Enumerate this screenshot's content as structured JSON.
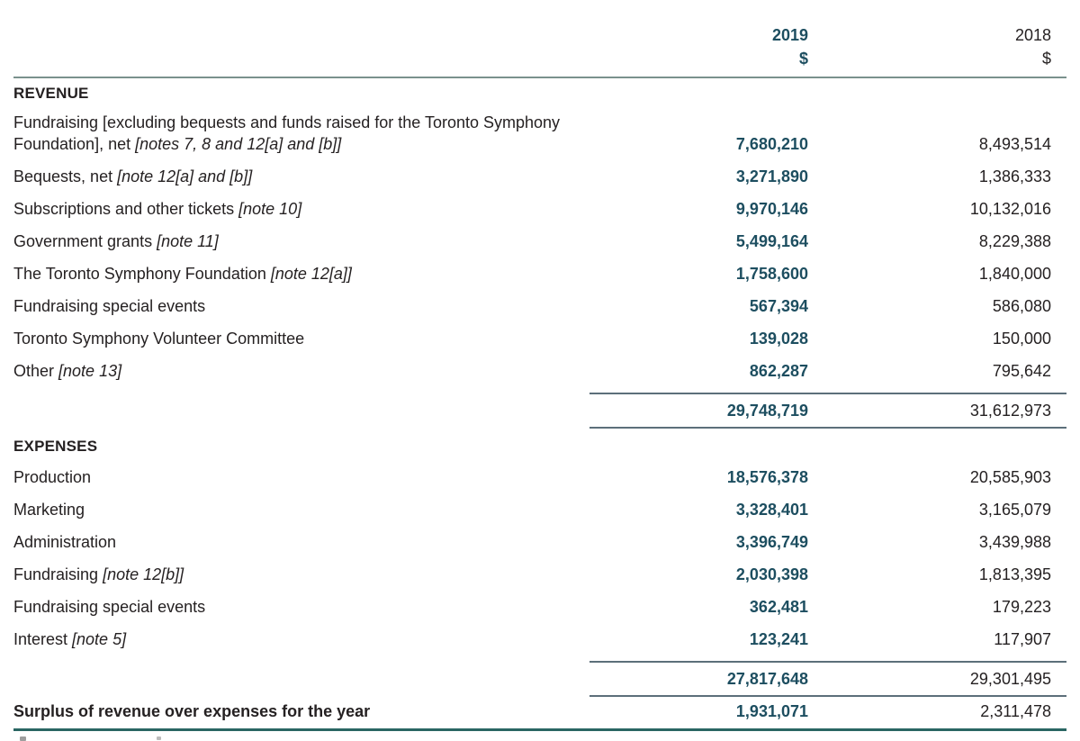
{
  "header": {
    "year_current": "2019",
    "year_prior": "2018",
    "currency_current": "$",
    "currency_prior": "$"
  },
  "sections": [
    {
      "heading": "REVENUE",
      "rows": [
        {
          "text": "Fundraising [excluding bequests and funds raised for the Toronto Symphony Foundation], net ",
          "note": "[notes 7, 8 and 12[a] and [b]]",
          "v2019": "7,680,210",
          "v2018": "8,493,514"
        },
        {
          "text": "Bequests, net ",
          "note": "[note 12[a] and [b]]",
          "v2019": "3,271,890",
          "v2018": "1,386,333"
        },
        {
          "text": "Subscriptions and other tickets ",
          "note": "[note 10]",
          "v2019": "9,970,146",
          "v2018": "10,132,016"
        },
        {
          "text": "Government grants ",
          "note": "[note 11]",
          "v2019": "5,499,164",
          "v2018": "8,229,388"
        },
        {
          "text": "The Toronto Symphony Foundation ",
          "note": "[note 12[a]]",
          "v2019": "1,758,600",
          "v2018": "1,840,000"
        },
        {
          "text": "Fundraising special events",
          "note": "",
          "v2019": "567,394",
          "v2018": "586,080"
        },
        {
          "text": "Toronto Symphony Volunteer Committee",
          "note": "",
          "v2019": "139,028",
          "v2018": "150,000"
        },
        {
          "text": "Other ",
          "note": "[note 13]",
          "v2019": "862,287",
          "v2018": "795,642"
        }
      ],
      "total": {
        "v2019": "29,748,719",
        "v2018": "31,612,973"
      }
    },
    {
      "heading": "EXPENSES",
      "rows": [
        {
          "text": "Production",
          "note": "",
          "v2019": "18,576,378",
          "v2018": "20,585,903"
        },
        {
          "text": "Marketing",
          "note": "",
          "v2019": "3,328,401",
          "v2018": "3,165,079"
        },
        {
          "text": "Administration",
          "note": "",
          "v2019": "3,396,749",
          "v2018": "3,439,988"
        },
        {
          "text": "Fundraising ",
          "note": "[note 12[b]]",
          "v2019": "2,030,398",
          "v2018": "1,813,395"
        },
        {
          "text": "Fundraising special events",
          "note": "",
          "v2019": "362,481",
          "v2018": "179,223"
        },
        {
          "text": "Interest ",
          "note": "[note 5]",
          "v2019": "123,241",
          "v2018": "117,907"
        }
      ],
      "total": {
        "v2019": "27,817,648",
        "v2018": "29,301,495"
      }
    }
  ],
  "summary": {
    "label": "Surplus of revenue over expenses for the year",
    "v2019": "1,931,071",
    "v2018": "2,311,478"
  },
  "colors": {
    "accent_teal": "#1d4e60",
    "body_text": "#252122",
    "rule_header": "#7a918d",
    "rule_subtotal": "#5c6f7a",
    "rule_bottom": "#2a6663"
  }
}
